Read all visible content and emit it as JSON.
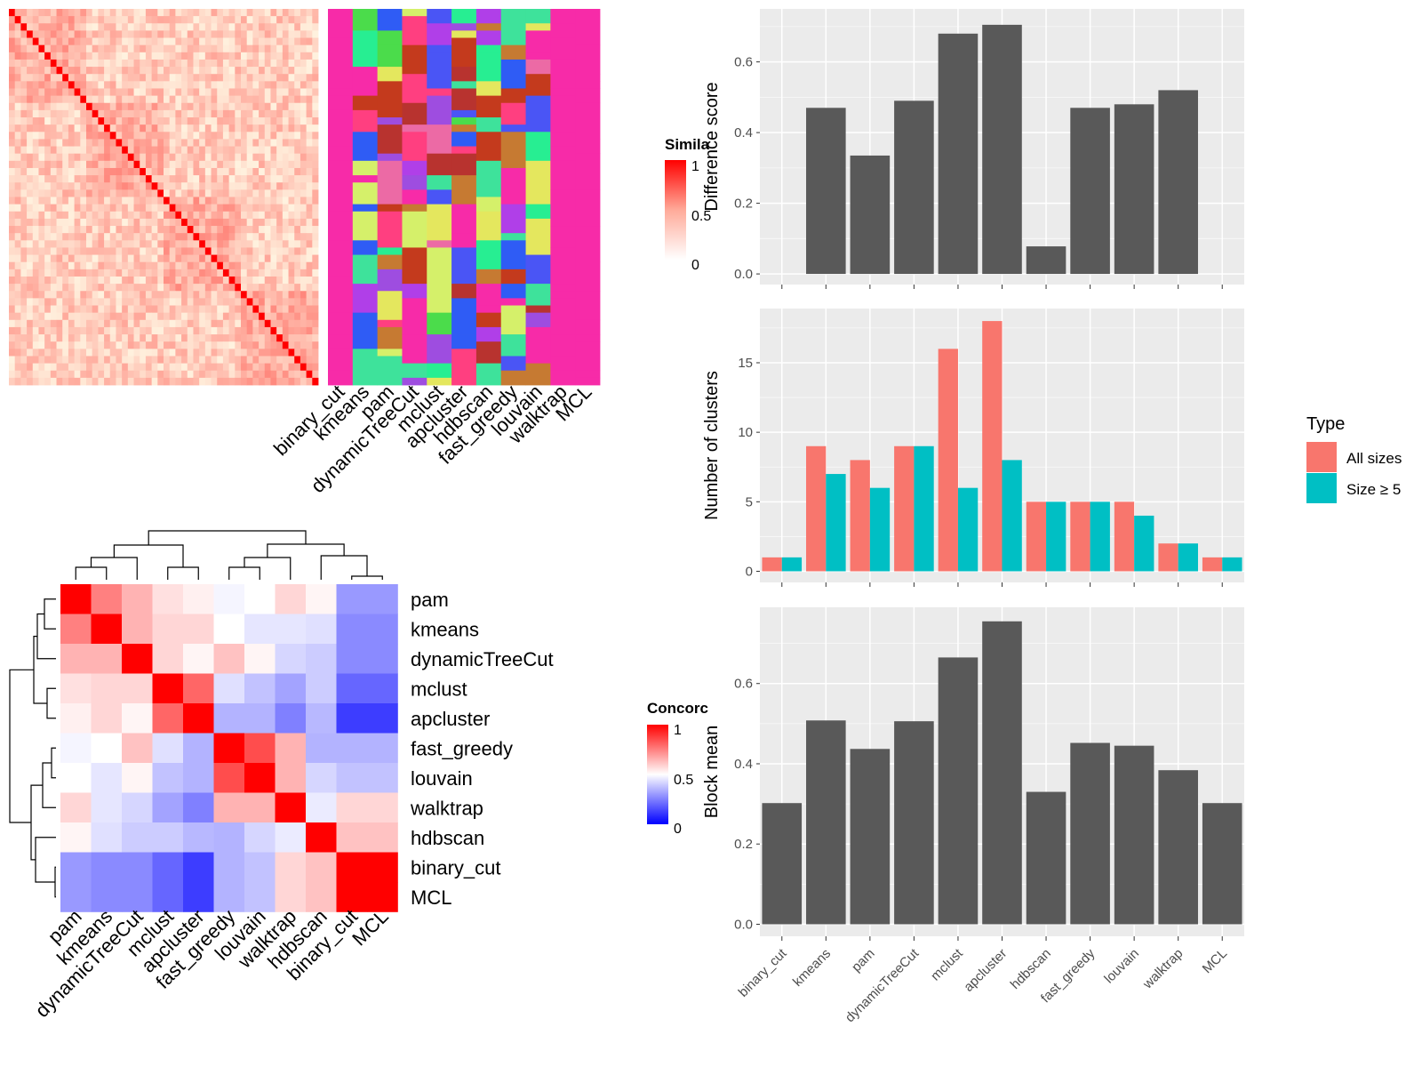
{
  "colors": {
    "similarity_high": "#ff0000",
    "similarity_low": "#ffffff",
    "concordance_high": "#ff0000",
    "concordance_mid": "#ffffff",
    "concordance_low": "#0000ff",
    "bar_fill": "#595959",
    "panel_bg": "#ebebeb",
    "grid": "#ffffff",
    "all_sizes": "#f8766d",
    "size_ge_5": "#00bfc4"
  },
  "similarity_legend": {
    "title": "Simila",
    "ticks": [
      "1",
      "0.5",
      "0"
    ]
  },
  "concordance_legend": {
    "title": "Concorc",
    "ticks": [
      "1",
      "0.5",
      "0"
    ]
  },
  "cluster_heatmap": {
    "column_labels": [
      "binary_cut",
      "kmeans",
      "pam",
      "dynamicTreeCut",
      "mclust",
      "apcluster",
      "hdbscan",
      "fast_greedy",
      "louvain",
      "walktrap",
      "MCL"
    ]
  },
  "concordance_heatmap": {
    "row_labels": [
      "pam",
      "kmeans",
      "dynamicTreeCut",
      "mclust",
      "apcluster",
      "fast_greedy",
      "louvain",
      "walktrap",
      "hdbscan",
      "binary_cut",
      "MCL"
    ],
    "column_labels": [
      "pam",
      "kmeans",
      "dynamicTreeCut",
      "mclust",
      "apcluster",
      "fast_greedy",
      "louvain",
      "walktrap",
      "hdbscan",
      "binary_cut",
      "MCL"
    ],
    "values": [
      [
        1.0,
        0.75,
        0.65,
        0.56,
        0.53,
        0.48,
        0.5,
        0.58,
        0.52,
        0.3,
        0.3
      ],
      [
        0.75,
        1.0,
        0.65,
        0.58,
        0.58,
        0.5,
        0.45,
        0.45,
        0.44,
        0.27,
        0.27
      ],
      [
        0.65,
        0.65,
        1.0,
        0.58,
        0.52,
        0.62,
        0.52,
        0.42,
        0.4,
        0.27,
        0.27
      ],
      [
        0.56,
        0.58,
        0.58,
        1.0,
        0.8,
        0.44,
        0.38,
        0.32,
        0.4,
        0.2,
        0.2
      ],
      [
        0.53,
        0.58,
        0.52,
        0.8,
        1.0,
        0.35,
        0.35,
        0.25,
        0.36,
        0.12,
        0.12
      ],
      [
        0.48,
        0.5,
        0.62,
        0.44,
        0.35,
        1.0,
        0.85,
        0.65,
        0.35,
        0.35,
        0.35
      ],
      [
        0.5,
        0.45,
        0.52,
        0.38,
        0.35,
        0.85,
        1.0,
        0.65,
        0.42,
        0.38,
        0.38
      ],
      [
        0.58,
        0.45,
        0.42,
        0.32,
        0.25,
        0.65,
        0.65,
        1.0,
        0.46,
        0.58,
        0.58
      ],
      [
        0.52,
        0.44,
        0.4,
        0.4,
        0.36,
        0.35,
        0.42,
        0.46,
        1.0,
        0.62,
        0.62
      ],
      [
        0.3,
        0.27,
        0.27,
        0.2,
        0.12,
        0.35,
        0.38,
        0.58,
        0.62,
        1.0,
        1.0
      ],
      [
        0.3,
        0.27,
        0.27,
        0.2,
        0.12,
        0.35,
        0.38,
        0.58,
        0.62,
        1.0,
        1.0
      ]
    ]
  },
  "chart_data": [
    {
      "type": "bar",
      "categories": [
        "binary_cut",
        "kmeans",
        "pam",
        "dynamicTreeCut",
        "mclust",
        "apcluster",
        "hdbscan",
        "fast_greedy",
        "louvain",
        "walktrap",
        "MCL"
      ],
      "values": [
        0,
        0.47,
        0.335,
        0.49,
        0.68,
        0.705,
        0.078,
        0.47,
        0.48,
        0.52,
        0
      ],
      "xlabel": "",
      "ylabel": "Difference score",
      "ylim": [
        -0.03,
        0.75
      ],
      "yticks": [
        0.0,
        0.2,
        0.4,
        0.6
      ],
      "ytick_labels": [
        "0.0",
        "0.2",
        "0.4",
        "0.6"
      ],
      "grid": true
    },
    {
      "type": "bar",
      "categories": [
        "binary_cut",
        "kmeans",
        "pam",
        "dynamicTreeCut",
        "mclust",
        "apcluster",
        "hdbscan",
        "fast_greedy",
        "louvain",
        "walktrap",
        "MCL"
      ],
      "series": [
        {
          "name": "All sizes",
          "values": [
            1,
            9,
            8,
            9,
            16,
            18,
            5,
            5,
            5,
            2,
            1
          ]
        },
        {
          "name": "Size ≥ 5",
          "values": [
            1,
            7,
            6,
            9,
            6,
            8,
            5,
            5,
            4,
            2,
            1
          ]
        }
      ],
      "xlabel": "",
      "ylabel": "Number of clusters",
      "ylim": [
        -0.8,
        18.9
      ],
      "yticks": [
        0,
        5,
        10,
        15
      ],
      "ytick_labels": [
        "0",
        "5",
        "10",
        "15"
      ],
      "legend": {
        "title": "Type",
        "position": "right"
      },
      "grid": true
    },
    {
      "type": "bar",
      "categories": [
        "binary_cut",
        "kmeans",
        "pam",
        "dynamicTreeCut",
        "mclust",
        "apcluster",
        "hdbscan",
        "fast_greedy",
        "louvain",
        "walktrap",
        "MCL"
      ],
      "values": [
        0.302,
        0.508,
        0.437,
        0.506,
        0.665,
        0.755,
        0.33,
        0.452,
        0.445,
        0.384,
        0.302
      ],
      "xlabel": "",
      "ylabel": "Block mean",
      "ylim": [
        -0.03,
        0.79
      ],
      "yticks": [
        0.0,
        0.2,
        0.4,
        0.6
      ],
      "ytick_labels": [
        "0.0",
        "0.2",
        "0.4",
        "0.6"
      ],
      "grid": true
    }
  ]
}
